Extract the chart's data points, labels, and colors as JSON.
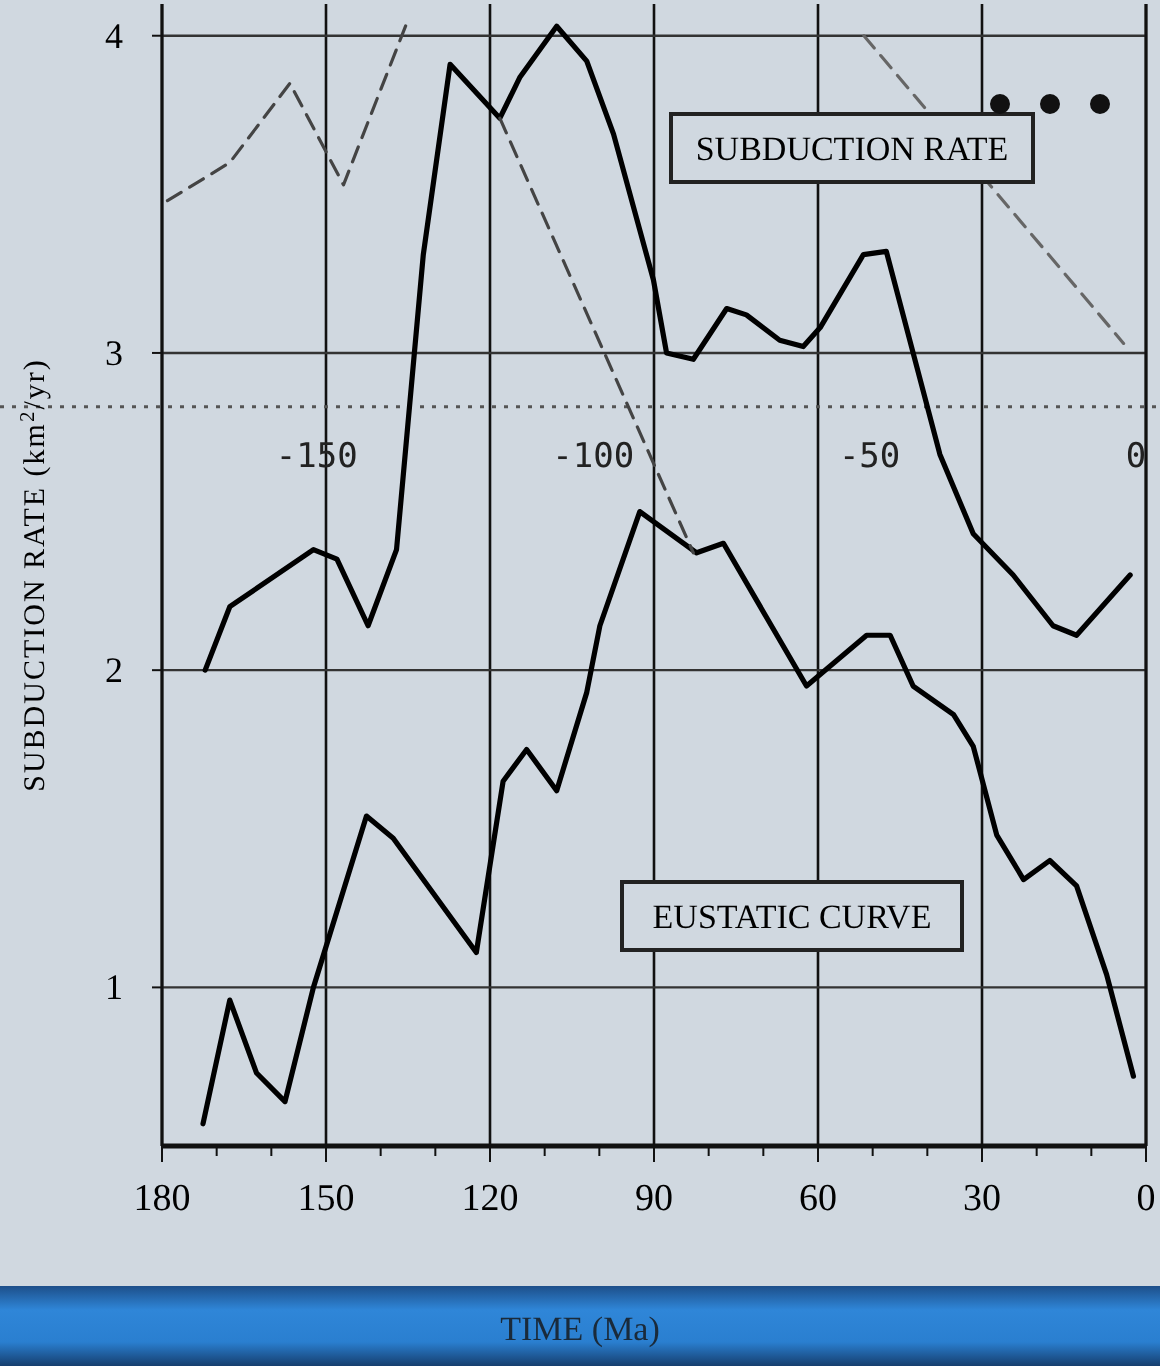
{
  "chart_data": {
    "type": "line",
    "xlabel": "TIME (Ma)",
    "ylabel": "SUBDUCTION RATE (km$^{2}$/yr)",
    "xlim": [
      180,
      0
    ],
    "xticks": [
      180,
      {
        "value": 170,
        "label": null
      },
      {
        "value": 160,
        "label": null
      },
      150,
      {
        "value": 140,
        "label": null
      },
      {
        "value": 130,
        "label": null
      },
      120,
      {
        "value": 110,
        "label": null
      },
      {
        "value": 100,
        "label": null
      },
      90,
      {
        "value": 80,
        "label": null
      },
      {
        "value": 70,
        "label": null
      },
      60,
      {
        "value": 50,
        "label": null
      },
      {
        "value": 40,
        "label": null
      },
      30,
      {
        "value": 20,
        "label": null
      },
      {
        "value": 10,
        "label": null
      },
      0
    ],
    "ylim": [
      0.5,
      4.1
    ],
    "yticks": [
      1,
      2,
      3,
      4
    ],
    "x2lim": [
      -178,
      0
    ],
    "x2ticks": [
      -150,
      -100,
      -50,
      0
    ],
    "grid": true,
    "ref_lines": [
      {
        "axis": "y",
        "value": 2.83,
        "line_style": "dotted",
        "color": "#555555"
      }
    ],
    "annotations": [
      "SUBDUCTION RATE",
      "EUSTATIC CURVE"
    ],
    "series": [
      {
        "color": "#000000",
        "line_style": "solid",
        "x": [
          172.1,
          167.6,
          152.3,
          148,
          142.3,
          137.1,
          132.2,
          127.3,
          118.2,
          114.5,
          107.8,
          102.3,
          97.4,
          90.1,
          87.7,
          82.8,
          76.7,
          73.1,
          67,
          62.7,
          59.6,
          51.7,
          47.5,
          42.6,
          37.7,
          31.6,
          24.3,
          17,
          12.7,
          2.9
        ],
        "values": [
          2.0,
          2.2,
          2.38,
          2.35,
          2.14,
          2.38,
          3.31,
          3.91,
          3.74,
          3.87,
          4.03,
          3.92,
          3.69,
          3.23,
          3.0,
          2.98,
          3.14,
          3.12,
          3.04,
          3.02,
          3.08,
          3.31,
          3.32,
          3.0,
          2.68,
          2.43,
          2.3,
          2.14,
          2.11,
          2.3
        ]
      },
      {
        "color": "#000000",
        "line_style": "solid",
        "x": [
          172.5,
          167.6,
          162.7,
          157.5,
          152.3,
          142.6,
          137.7,
          122.5,
          117.6,
          113.3,
          107.8,
          102.3,
          99.9,
          92.6,
          82.2,
          77.3,
          62.1,
          51.1,
          46.8,
          42.6,
          35.2,
          31.6,
          27.3,
          22.4,
          17.6,
          12.7,
          7.2,
          2.3
        ],
        "values": [
          0.57,
          0.96,
          0.73,
          0.64,
          1.0,
          1.54,
          1.47,
          1.11,
          1.65,
          1.75,
          1.62,
          1.93,
          2.14,
          2.5,
          2.37,
          2.4,
          1.95,
          2.11,
          2.11,
          1.95,
          1.86,
          1.76,
          1.48,
          1.34,
          1.4,
          1.32,
          1.04,
          0.72
        ]
      },
      {
        "color": "#444444",
        "line_style": "dashed",
        "x": [
          179,
          167.6,
          156.6,
          146.8,
          135
        ],
        "values": [
          3.48,
          3.6,
          3.85,
          3.53,
          4.05
        ]
      },
      {
        "color": "#444444",
        "line_style": "dashed",
        "x": [
          118.2,
          82.8
        ],
        "values": [
          3.74,
          2.37
        ]
      },
      {
        "color": "#666666",
        "line_style": "dashed",
        "x": [
          51.6,
          4.1
        ],
        "values": [
          4.0,
          3.03
        ]
      }
    ]
  }
}
